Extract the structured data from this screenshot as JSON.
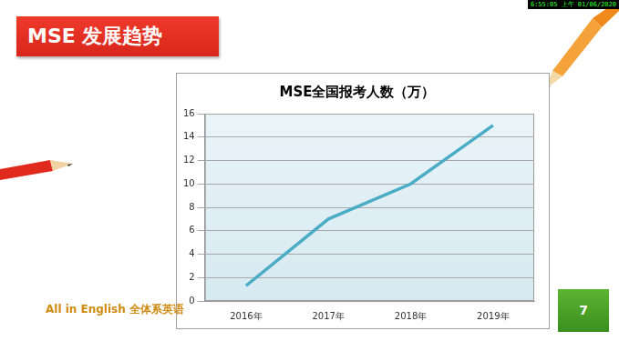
{
  "slide": {
    "title": "MSE 发展趋势",
    "footer": "All in English 全体系英语",
    "page_number": "7",
    "timestamp": "6:55:05 上午 01/06/2020"
  },
  "chart_data": {
    "type": "line",
    "title": "MSE全国报考人数（万）",
    "categories": [
      "2016年",
      "2017年",
      "2018年",
      "2019年"
    ],
    "values": [
      1.3,
      7,
      10,
      15
    ],
    "color": "#4bacc6",
    "marker": "none",
    "line_style": "solid",
    "ylim": [
      0,
      16
    ],
    "yticks": [
      0,
      2,
      4,
      6,
      8,
      10,
      12,
      14,
      16
    ],
    "grid": true
  }
}
